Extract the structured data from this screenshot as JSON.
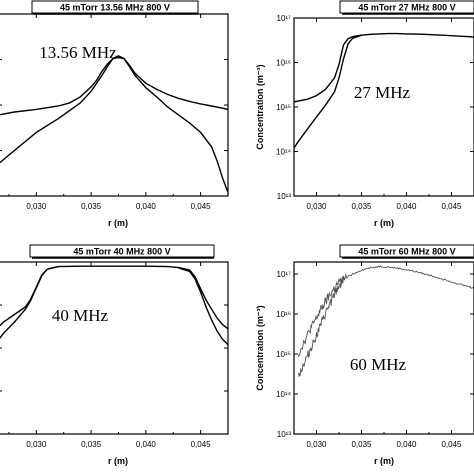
{
  "chart_data": [
    {
      "type": "line",
      "header": "45 mTorr   13.56 MHz   800 V",
      "annotation": "13.56 MHz",
      "xlabel": "r (m)",
      "ylabel": "",
      "xlim": [
        0.0265,
        0.0475
      ],
      "ylim": [
        10000000000000.0,
        1e+17
      ],
      "yscale": "log",
      "xticks": [
        "0,030",
        "0,035",
        "0,040",
        "0,045"
      ],
      "yticks": [],
      "series": [
        {
          "color": "#000000",
          "x": [
            0.0265,
            0.028,
            0.03,
            0.032,
            0.033,
            0.034,
            0.035,
            0.0355,
            0.036,
            0.0365,
            0.037,
            0.0375,
            0.038,
            0.0385,
            0.039,
            0.04,
            0.041,
            0.042,
            0.043,
            0.044,
            0.045,
            0.046,
            0.047,
            0.0475
          ],
          "y": [
            600000000000000.0,
            700000000000000.0,
            800000000000000.0,
            950000000000000.0,
            1100000000000000.0,
            1500000000000000.0,
            2500000000000000.0,
            3500000000000000.0,
            5500000000000000.0,
            8000000000000000.0,
            1.05e+16,
            1.1e+16,
            1.05e+16,
            7500000000000000.0,
            5000000000000000.0,
            3000000000000000.0,
            2200000000000000.0,
            1700000000000000.0,
            1400000000000000.0,
            1200000000000000.0,
            1050000000000000.0,
            950000000000000.0,
            850000000000000.0,
            800000000000000.0
          ]
        },
        {
          "color": "#000000",
          "x": [
            0.0265,
            0.028,
            0.03,
            0.032,
            0.034,
            0.035,
            0.036,
            0.0365,
            0.037,
            0.0375,
            0.038,
            0.0385,
            0.039,
            0.04,
            0.041,
            0.042,
            0.043,
            0.044,
            0.045,
            0.046,
            0.0465,
            0.047,
            0.0475
          ],
          "y": [
            50000000000000.0,
            100000000000000.0,
            250000000000000.0,
            500000000000000.0,
            1100000000000000.0,
            2000000000000000.0,
            4500000000000000.0,
            7000000000000000.0,
            1.05e+16,
            1.2e+16,
            1.05e+16,
            7000000000000000.0,
            4500000000000000.0,
            2400000000000000.0,
            1500000000000000.0,
            900000000000000.0,
            600000000000000.0,
            400000000000000.0,
            250000000000000.0,
            120000000000000.0,
            60000000000000.0,
            25000000000000.0,
            12000000000000.0
          ]
        }
      ]
    },
    {
      "type": "line",
      "header": "45 mTorr   27 MHz   800 V",
      "annotation": "27 MHz",
      "xlabel": "r (m)",
      "ylabel": "Concentration (m⁻³)",
      "xlim": [
        0.0275,
        0.0475
      ],
      "ylim": [
        10000000000000.0,
        1e+17
      ],
      "yscale": "log",
      "xticks": [
        "0,030",
        "0,035",
        "0,040",
        "0,045"
      ],
      "yticks": [
        "10¹³",
        "10¹⁴",
        "10¹⁵",
        "10¹⁶",
        "10¹⁷"
      ],
      "series": [
        {
          "color": "#000000",
          "x": [
            0.0275,
            0.029,
            0.03,
            0.031,
            0.032,
            0.0325,
            0.033,
            0.0335,
            0.034,
            0.035,
            0.036,
            0.037,
            0.038,
            0.039,
            0.04,
            0.041,
            0.042,
            0.043,
            0.044,
            0.045,
            0.046,
            0.047,
            0.0475
          ],
          "y": [
            1300000000000000.0,
            1500000000000000.0,
            1800000000000000.0,
            2500000000000000.0,
            4500000000000000.0,
            9000000000000000.0,
            2.5e+16,
            3.4e+16,
            3.8e+16,
            4.1e+16,
            4.3e+16,
            4.4e+16,
            4.45e+16,
            4.45e+16,
            4.4e+16,
            4.35e+16,
            4.3e+16,
            4.2e+16,
            4.1e+16,
            4e+16,
            3.9e+16,
            3.8e+16,
            3.7e+16
          ]
        },
        {
          "color": "#000000",
          "x": [
            0.0275,
            0.028,
            0.029,
            0.03,
            0.031,
            0.032,
            0.0325,
            0.033,
            0.0335,
            0.034,
            0.035
          ],
          "y": [
            120000000000000.0,
            170000000000000.0,
            320000000000000.0,
            600000000000000.0,
            1100000000000000.0,
            2200000000000000.0,
            4500000000000000.0,
            1.2e+16,
            2.6e+16,
            3.5e+16,
            4.1e+16
          ]
        }
      ]
    },
    {
      "type": "line",
      "header": "45 mTorr   40 MHz   800 V",
      "annotation": "40 MHz",
      "xlabel": "r (m)",
      "ylabel": "",
      "xlim": [
        0.0265,
        0.0475
      ],
      "ylim": [
        10000000000000.0,
        1e+17
      ],
      "yscale": "log",
      "xticks": [
        "0,030",
        "0,035",
        "0,040",
        "0,045"
      ],
      "yticks": [],
      "series": [
        {
          "color": "#000000",
          "x": [
            0.0265,
            0.027,
            0.028,
            0.029,
            0.0295,
            0.03,
            0.0305,
            0.031,
            0.032,
            0.034,
            0.036,
            0.038,
            0.04,
            0.042,
            0.043,
            0.044,
            0.0445,
            0.045,
            0.0455,
            0.046,
            0.0465,
            0.047,
            0.0475
          ],
          "y": [
            3000000000000000.0,
            4000000000000000.0,
            6000000000000000.0,
            9000000000000000.0,
            1.4e+16,
            2.6e+16,
            5e+16,
            6.8e+16,
            7.8e+16,
            8e+16,
            8e+16,
            8e+16,
            8e+16,
            7.8e+16,
            7.4e+16,
            6.5e+16,
            4.5e+16,
            2.4e+16,
            1.3e+16,
            8000000000000000.0,
            5000000000000000.0,
            3500000000000000.0,
            2800000000000000.0
          ]
        },
        {
          "color": "#000000",
          "x": [
            0.0265,
            0.027,
            0.028,
            0.029,
            0.0295,
            0.03,
            0.0305,
            0.031,
            0.032
          ],
          "y": [
            1500000000000000.0,
            2200000000000000.0,
            4000000000000000.0,
            8000000000000000.0,
            1.3e+16,
            2.5e+16,
            4.8e+16,
            6.8e+16,
            7.8e+16
          ]
        },
        {
          "color": "#000000",
          "x": [
            0.043,
            0.044,
            0.0445,
            0.045,
            0.0455,
            0.046,
            0.0465,
            0.047,
            0.0475
          ],
          "y": [
            7.3e+16,
            6e+16,
            4e+16,
            2e+16,
            9000000000000000.0,
            4500000000000000.0,
            2500000000000000.0,
            1600000000000000.0,
            1200000000000000.0
          ]
        }
      ]
    },
    {
      "type": "line",
      "header": "45 mTorr   60 MHz   800 V",
      "annotation": "60 MHz",
      "xlabel": "r (m)",
      "ylabel": "Concentration (m⁻³)",
      "xlim": [
        0.0275,
        0.0475
      ],
      "ylim": [
        10000000000000.0,
        2e+17
      ],
      "yscale": "log",
      "xticks": [
        "0,030",
        "0,035",
        "0,040",
        "0,045"
      ],
      "yticks": [
        "10¹³",
        "10¹⁴",
        "10¹⁵",
        "10¹⁶",
        "10¹⁷"
      ],
      "series": [
        {
          "color": "#555555",
          "noisy": true,
          "x": [
            0.028,
            0.0285,
            0.029,
            0.0295,
            0.03,
            0.0305,
            0.031,
            0.0315,
            0.032,
            0.0325,
            0.033,
            0.034,
            0.035,
            0.036,
            0.037,
            0.038,
            0.039,
            0.04,
            0.041,
            0.042,
            0.043,
            0.044,
            0.045,
            0.046,
            0.047,
            0.0475
          ],
          "y": [
            1000000000000000.0,
            1800000000000000.0,
            3000000000000000.0,
            5000000000000000.0,
            8000000000000000.0,
            1.3e+16,
            2e+16,
            3e+16,
            4.5e+16,
            6e+16,
            7.5e+16,
            1e+17,
            1.25e+17,
            1.45e+17,
            1.55e+17,
            1.5e+17,
            1.4e+17,
            1.28e+17,
            1.15e+17,
            1e+17,
            8.8e+16,
            7.5e+16,
            6.5e+16,
            5.5e+16,
            4.8e+16,
            4.4e+16
          ]
        },
        {
          "color": "#555555",
          "noisy": true,
          "x": [
            0.028,
            0.0285,
            0.029,
            0.0295,
            0.03,
            0.0305,
            0.031,
            0.0315,
            0.032,
            0.0325,
            0.033
          ],
          "y": [
            300000000000000.0,
            500000000000000.0,
            900000000000000.0,
            1600000000000000.0,
            3000000000000000.0,
            5500000000000000.0,
            1e+16,
            1.8e+16,
            3e+16,
            5e+16,
            7e+16
          ]
        }
      ]
    }
  ]
}
